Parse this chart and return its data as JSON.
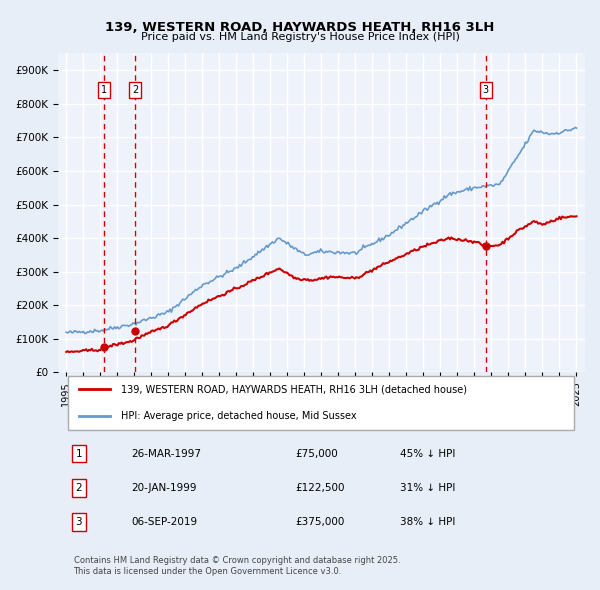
{
  "title": "139, WESTERN ROAD, HAYWARDS HEATH, RH16 3LH",
  "subtitle": "Price paid vs. HM Land Registry's House Price Index (HPI)",
  "legend_line1": "139, WESTERN ROAD, HAYWARDS HEATH, RH16 3LH (detached house)",
  "legend_line2": "HPI: Average price, detached house, Mid Sussex",
  "sales": [
    {
      "num": 1,
      "date_label": "26-MAR-1997",
      "date_x": 1997.23,
      "price": 75000,
      "pct": "45%",
      "dir": "↓"
    },
    {
      "num": 2,
      "date_label": "20-JAN-1999",
      "date_x": 1999.05,
      "price": 122500,
      "pct": "31%",
      "dir": "↓"
    },
    {
      "num": 3,
      "date_label": "06-SEP-2019",
      "date_x": 2019.67,
      "price": 375000,
      "pct": "38%",
      "dir": "↓"
    }
  ],
  "footnote": "Contains HM Land Registry data © Crown copyright and database right 2025.\nThis data is licensed under the Open Government Licence v3.0.",
  "bg_color": "#e8eef8",
  "plot_bg": "#eef2fb",
  "red_color": "#cc0000",
  "blue_color": "#6699cc",
  "grid_color": "#ffffff",
  "ylim": [
    0,
    950000
  ],
  "xlim": [
    1994.5,
    2025.5
  ]
}
